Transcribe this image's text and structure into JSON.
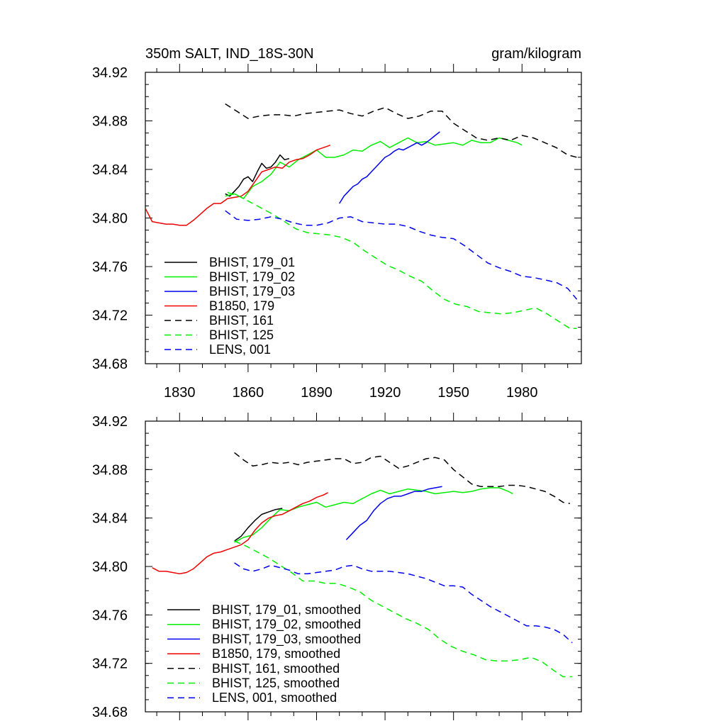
{
  "header": {
    "title": "350m SALT, IND_18S-30N",
    "units": "gram/kilogram"
  },
  "chart_data": [
    {
      "type": "line",
      "title": "350m SALT, IND_18S-30N",
      "units_label": "gram/kilogram",
      "xlim": [
        1815,
        2006
      ],
      "ylim": [
        34.68,
        34.92
      ],
      "xticks": [
        1830,
        1860,
        1890,
        1920,
        1950,
        1980
      ],
      "xtick_labels": [
        "1830",
        "1860",
        "1890",
        "1920",
        "1950",
        "1980"
      ],
      "yticks": [
        34.68,
        34.72,
        34.76,
        34.8,
        34.84,
        34.88,
        34.92
      ],
      "ytick_labels": [
        "34.68",
        "34.72",
        "34.76",
        "34.80",
        "34.84",
        "34.88",
        "34.92"
      ],
      "legend_position": "bottom-left",
      "series": [
        {
          "name": "BHIST, 179_01",
          "color": "#000000",
          "dash": "solid",
          "x": [
            1850,
            1852,
            1854,
            1856,
            1858,
            1860,
            1862,
            1864,
            1866,
            1868,
            1870,
            1872,
            1874,
            1876,
            1878
          ],
          "y": [
            34.82,
            34.818,
            34.822,
            34.826,
            34.832,
            34.834,
            34.83,
            34.838,
            34.845,
            34.841,
            34.842,
            34.846,
            34.852,
            34.848,
            34.849
          ]
        },
        {
          "name": "BHIST, 179_02",
          "color": "#00ee00",
          "dash": "solid",
          "x": [
            1850,
            1854,
            1858,
            1862,
            1866,
            1870,
            1874,
            1878,
            1882,
            1886,
            1890,
            1894,
            1898,
            1902,
            1906,
            1910,
            1914,
            1918,
            1922,
            1926,
            1930,
            1934,
            1938,
            1942,
            1946,
            1950,
            1954,
            1958,
            1962,
            1966,
            1970,
            1974,
            1978,
            1980
          ],
          "y": [
            34.818,
            34.82,
            34.816,
            34.826,
            34.83,
            34.836,
            34.846,
            34.842,
            34.848,
            34.852,
            34.856,
            34.85,
            34.85,
            34.852,
            34.856,
            34.855,
            34.86,
            34.863,
            34.858,
            34.862,
            34.866,
            34.862,
            34.863,
            34.86,
            34.861,
            34.862,
            34.86,
            34.864,
            34.862,
            34.862,
            34.866,
            34.864,
            34.862,
            34.86
          ]
        },
        {
          "name": "BHIST, 179_03",
          "color": "#0000ee",
          "dash": "solid",
          "x": [
            1900,
            1902,
            1904,
            1906,
            1908,
            1910,
            1912,
            1914,
            1916,
            1918,
            1920,
            1922,
            1924,
            1926,
            1928,
            1930,
            1932,
            1934,
            1936,
            1938,
            1940,
            1942,
            1944
          ],
          "y": [
            34.812,
            34.818,
            34.822,
            34.826,
            34.828,
            34.832,
            34.834,
            34.838,
            34.842,
            34.846,
            34.85,
            34.852,
            34.855,
            34.857,
            34.856,
            34.858,
            34.86,
            34.862,
            34.86,
            34.862,
            34.865,
            34.868,
            34.871
          ]
        },
        {
          "name": "B1850, 179",
          "color": "#ee0000",
          "dash": "solid",
          "x": [
            1815,
            1818,
            1821,
            1824,
            1827,
            1830,
            1833,
            1836,
            1839,
            1842,
            1845,
            1848,
            1851,
            1854,
            1857,
            1860,
            1863,
            1866,
            1869,
            1872,
            1875,
            1878,
            1881,
            1884,
            1887,
            1890,
            1893,
            1896
          ],
          "y": [
            34.808,
            34.797,
            34.796,
            34.795,
            34.795,
            34.794,
            34.794,
            34.798,
            34.803,
            34.808,
            34.812,
            34.812,
            34.816,
            34.817,
            34.818,
            34.822,
            34.83,
            34.838,
            34.84,
            34.842,
            34.841,
            34.846,
            34.848,
            34.849,
            34.852,
            34.856,
            34.858,
            34.86
          ]
        },
        {
          "name": "BHIST, 161",
          "color": "#000000",
          "dash": "dashed",
          "x": [
            1850,
            1855,
            1860,
            1865,
            1870,
            1875,
            1880,
            1885,
            1890,
            1895,
            1900,
            1905,
            1910,
            1915,
            1920,
            1925,
            1930,
            1935,
            1940,
            1945,
            1950,
            1955,
            1960,
            1965,
            1970,
            1975,
            1980,
            1985,
            1990,
            1995,
            2000,
            2004
          ],
          "y": [
            34.894,
            34.888,
            34.882,
            34.884,
            34.885,
            34.885,
            34.884,
            34.886,
            34.887,
            34.888,
            34.889,
            34.886,
            34.884,
            34.888,
            34.891,
            34.886,
            34.882,
            34.884,
            34.888,
            34.888,
            34.878,
            34.872,
            34.866,
            34.864,
            34.866,
            34.864,
            34.868,
            34.866,
            34.862,
            34.858,
            34.852,
            34.85
          ]
        },
        {
          "name": "BHIST, 125",
          "color": "#00ee00",
          "dash": "dashed",
          "x": [
            1851,
            1856,
            1861,
            1866,
            1871,
            1876,
            1881,
            1886,
            1891,
            1896,
            1901,
            1906,
            1911,
            1916,
            1921,
            1926,
            1931,
            1936,
            1941,
            1946,
            1951,
            1956,
            1961,
            1966,
            1971,
            1976,
            1981,
            1986,
            1991,
            1996,
            2001,
            2004
          ],
          "y": [
            34.821,
            34.818,
            34.813,
            34.808,
            34.803,
            34.797,
            34.791,
            34.788,
            34.787,
            34.786,
            34.784,
            34.78,
            34.773,
            34.767,
            34.761,
            34.757,
            34.752,
            34.748,
            34.74,
            34.733,
            34.729,
            34.727,
            34.723,
            34.722,
            34.721,
            34.722,
            34.724,
            34.726,
            34.721,
            34.715,
            34.709,
            34.709
          ]
        },
        {
          "name": "LENS, 001",
          "color": "#0000ee",
          "dash": "dashed",
          "x": [
            1850,
            1855,
            1860,
            1865,
            1870,
            1875,
            1880,
            1885,
            1890,
            1895,
            1900,
            1905,
            1910,
            1915,
            1920,
            1925,
            1930,
            1935,
            1940,
            1945,
            1950,
            1955,
            1960,
            1965,
            1970,
            1975,
            1980,
            1985,
            1990,
            1995,
            2000,
            2004
          ],
          "y": [
            34.806,
            34.799,
            34.798,
            34.799,
            34.801,
            34.799,
            34.796,
            34.794,
            34.794,
            34.796,
            34.8,
            34.801,
            34.797,
            34.796,
            34.795,
            34.795,
            34.793,
            34.789,
            34.786,
            34.784,
            34.783,
            34.777,
            34.77,
            34.763,
            34.759,
            34.756,
            34.752,
            34.751,
            34.749,
            34.747,
            34.742,
            34.733
          ]
        }
      ]
    },
    {
      "type": "line",
      "xlim": [
        1815,
        2006
      ],
      "ylim": [
        34.68,
        34.92
      ],
      "xticks": [
        1830,
        1860,
        1890,
        1920,
        1950,
        1980
      ],
      "xtick_labels": [],
      "yticks": [
        34.68,
        34.72,
        34.76,
        34.8,
        34.84,
        34.88,
        34.92
      ],
      "ytick_labels": [
        "34.68",
        "34.72",
        "34.76",
        "34.80",
        "34.84",
        "34.88",
        "34.92"
      ],
      "legend_position": "bottom-left",
      "series": [
        {
          "name": "BHIST, 179_01, smoothed",
          "color": "#000000",
          "dash": "solid",
          "x": [
            1854,
            1857,
            1860,
            1863,
            1866,
            1869,
            1872,
            1875
          ],
          "y": [
            34.821,
            34.825,
            34.832,
            34.838,
            34.843,
            34.845,
            34.847,
            34.848
          ]
        },
        {
          "name": "BHIST, 179_02, smoothed",
          "color": "#00ee00",
          "dash": "solid",
          "x": [
            1854,
            1858,
            1862,
            1866,
            1870,
            1874,
            1878,
            1882,
            1886,
            1890,
            1894,
            1898,
            1902,
            1906,
            1910,
            1914,
            1918,
            1922,
            1926,
            1930,
            1934,
            1938,
            1942,
            1946,
            1950,
            1954,
            1958,
            1962,
            1966,
            1970,
            1974,
            1976
          ],
          "y": [
            34.82,
            34.824,
            34.826,
            34.832,
            34.84,
            34.847,
            34.846,
            34.849,
            34.851,
            34.853,
            34.849,
            34.851,
            34.853,
            34.852,
            34.856,
            34.86,
            34.863,
            34.86,
            34.862,
            34.864,
            34.863,
            34.862,
            34.86,
            34.861,
            34.862,
            34.861,
            34.862,
            34.864,
            34.865,
            34.865,
            34.862,
            34.86
          ]
        },
        {
          "name": "BHIST, 179_03, smoothed",
          "color": "#0000ee",
          "dash": "solid",
          "x": [
            1903,
            1906,
            1909,
            1912,
            1915,
            1918,
            1921,
            1924,
            1927,
            1930,
            1933,
            1936,
            1939,
            1942,
            1945
          ],
          "y": [
            34.822,
            34.828,
            34.834,
            34.838,
            34.846,
            34.852,
            34.856,
            34.858,
            34.858,
            34.86,
            34.862,
            34.862,
            34.864,
            34.865,
            34.866
          ]
        },
        {
          "name": "B1850, 179, smoothed",
          "color": "#ee0000",
          "dash": "solid",
          "x": [
            1818,
            1821,
            1824,
            1827,
            1830,
            1833,
            1836,
            1839,
            1842,
            1845,
            1848,
            1851,
            1854,
            1857,
            1860,
            1863,
            1866,
            1869,
            1872,
            1875,
            1878,
            1881,
            1884,
            1887,
            1890,
            1893,
            1895
          ],
          "y": [
            34.799,
            34.796,
            34.796,
            34.795,
            34.794,
            34.795,
            34.798,
            34.803,
            34.808,
            34.811,
            34.812,
            34.814,
            34.816,
            34.818,
            34.822,
            34.83,
            34.836,
            34.84,
            34.842,
            34.843,
            34.846,
            34.849,
            34.852,
            34.854,
            34.857,
            34.859,
            34.861
          ]
        },
        {
          "name": "BHIST, 161, smoothed",
          "color": "#000000",
          "dash": "dashed",
          "x": [
            1854,
            1858,
            1862,
            1866,
            1870,
            1874,
            1878,
            1882,
            1886,
            1890,
            1894,
            1898,
            1902,
            1906,
            1910,
            1914,
            1918,
            1922,
            1926,
            1930,
            1934,
            1938,
            1942,
            1946,
            1950,
            1954,
            1958,
            1962,
            1966,
            1970,
            1974,
            1978,
            1982,
            1986,
            1990,
            1994,
            1998,
            2001
          ],
          "y": [
            34.894,
            34.888,
            34.883,
            34.884,
            34.886,
            34.885,
            34.886,
            34.884,
            34.886,
            34.887,
            34.888,
            34.889,
            34.889,
            34.885,
            34.886,
            34.89,
            34.891,
            34.886,
            34.881,
            34.883,
            34.886,
            34.889,
            34.89,
            34.888,
            34.88,
            34.874,
            34.868,
            34.866,
            34.866,
            34.866,
            34.867,
            34.867,
            34.866,
            34.864,
            34.862,
            34.858,
            34.853,
            34.852
          ]
        },
        {
          "name": "BHIST, 125, smoothed",
          "color": "#00ee00",
          "dash": "dashed",
          "x": [
            1854,
            1859,
            1864,
            1869,
            1874,
            1879,
            1884,
            1889,
            1894,
            1899,
            1904,
            1909,
            1914,
            1919,
            1924,
            1929,
            1934,
            1939,
            1944,
            1949,
            1954,
            1959,
            1964,
            1969,
            1974,
            1979,
            1984,
            1989,
            1994,
            1998,
            2002
          ],
          "y": [
            34.821,
            34.817,
            34.812,
            34.807,
            34.801,
            34.795,
            34.788,
            34.788,
            34.786,
            34.786,
            34.783,
            34.779,
            34.772,
            34.767,
            34.762,
            34.757,
            34.753,
            34.748,
            34.74,
            34.734,
            34.73,
            34.727,
            34.723,
            34.722,
            34.722,
            34.723,
            34.725,
            34.721,
            34.714,
            34.709,
            34.709
          ]
        },
        {
          "name": "LENS, 001, smoothed",
          "color": "#0000ee",
          "dash": "dashed",
          "x": [
            1854,
            1858,
            1862,
            1866,
            1870,
            1874,
            1878,
            1882,
            1886,
            1890,
            1894,
            1898,
            1902,
            1906,
            1910,
            1914,
            1918,
            1922,
            1926,
            1930,
            1934,
            1938,
            1942,
            1946,
            1950,
            1954,
            1958,
            1962,
            1966,
            1970,
            1974,
            1978,
            1982,
            1986,
            1990,
            1994,
            1998,
            2002
          ],
          "y": [
            34.803,
            34.798,
            34.796,
            34.798,
            34.801,
            34.799,
            34.797,
            34.794,
            34.794,
            34.795,
            34.796,
            34.797,
            34.8,
            34.801,
            34.798,
            34.796,
            34.796,
            34.796,
            34.795,
            34.794,
            34.792,
            34.79,
            34.787,
            34.784,
            34.784,
            34.783,
            34.777,
            34.772,
            34.767,
            34.763,
            34.759,
            34.755,
            34.751,
            34.751,
            34.75,
            34.748,
            34.744,
            34.737
          ]
        }
      ]
    }
  ]
}
